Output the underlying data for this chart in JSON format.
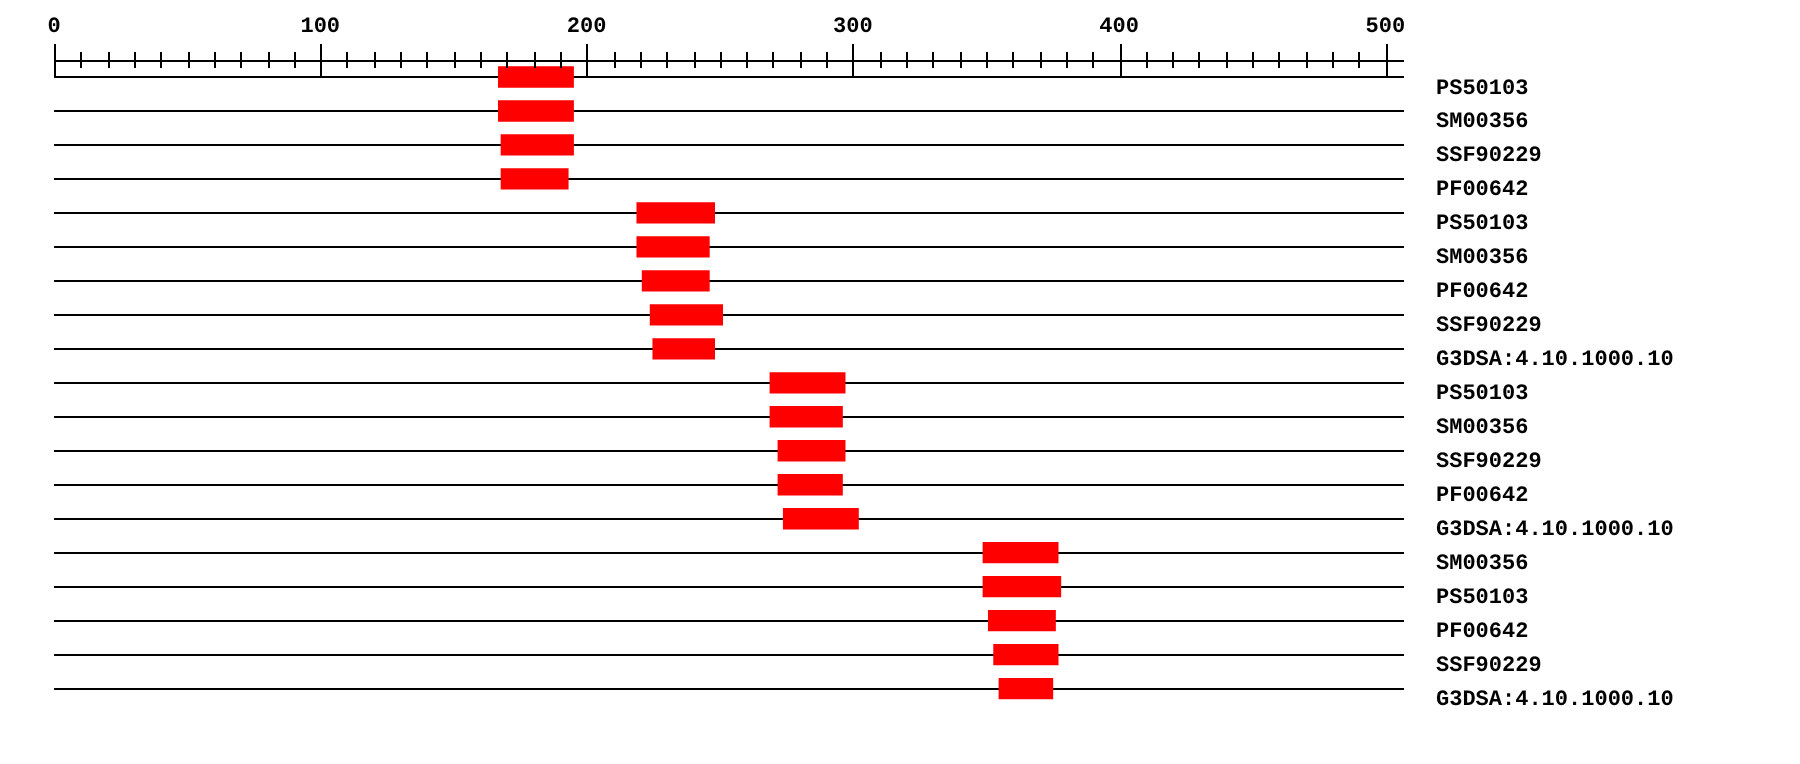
{
  "chart_data": {
    "type": "bar",
    "orientation": "horizontal",
    "categories": [
      "PS50103",
      "SM00356",
      "SSF90229",
      "PF00642",
      "PS50103",
      "SM00356",
      "PF00642",
      "SSF90229",
      "G3DSA:4.10.1000.10",
      "PS50103",
      "SM00356",
      "SSF90229",
      "PF00642",
      "G3DSA:4.10.1000.10",
      "SM00356",
      "PS50103",
      "PF00642",
      "SSF90229",
      "G3DSA:4.10.1000.10"
    ],
    "base": [
      167,
      167,
      168,
      168,
      219,
      219,
      221,
      224,
      225,
      269,
      269,
      272,
      272,
      274,
      349,
      349,
      351,
      353,
      355
    ],
    "values": [
      28,
      28,
      27,
      25,
      29,
      27,
      25,
      27,
      23,
      28,
      27,
      25,
      24,
      28,
      28,
      29,
      25,
      24,
      20
    ],
    "color": "#ff0000",
    "xlim": [
      0,
      507
    ],
    "xticks": [
      0,
      {
        "value": 10,
        "label": null
      },
      {
        "value": 20,
        "label": null
      },
      {
        "value": 30,
        "label": null
      },
      {
        "value": 40,
        "label": null
      },
      {
        "value": 50,
        "label": null
      },
      {
        "value": 60,
        "label": null
      },
      {
        "value": 70,
        "label": null
      },
      {
        "value": 80,
        "label": null
      },
      {
        "value": 90,
        "label": null
      },
      100,
      {
        "value": 110,
        "label": null
      },
      {
        "value": 120,
        "label": null
      },
      {
        "value": 130,
        "label": null
      },
      {
        "value": 140,
        "label": null
      },
      {
        "value": 150,
        "label": null
      },
      {
        "value": 160,
        "label": null
      },
      {
        "value": 170,
        "label": null
      },
      {
        "value": 180,
        "label": null
      },
      {
        "value": 190,
        "label": null
      },
      200,
      {
        "value": 210,
        "label": null
      },
      {
        "value": 220,
        "label": null
      },
      {
        "value": 230,
        "label": null
      },
      {
        "value": 240,
        "label": null
      },
      {
        "value": 250,
        "label": null
      },
      {
        "value": 260,
        "label": null
      },
      {
        "value": 270,
        "label": null
      },
      {
        "value": 280,
        "label": null
      },
      {
        "value": 290,
        "label": null
      },
      300,
      {
        "value": 310,
        "label": null
      },
      {
        "value": 320,
        "label": null
      },
      {
        "value": 330,
        "label": null
      },
      {
        "value": 340,
        "label": null
      },
      {
        "value": 350,
        "label": null
      },
      {
        "value": 360,
        "label": null
      },
      {
        "value": 370,
        "label": null
      },
      {
        "value": 380,
        "label": null
      },
      {
        "value": 390,
        "label": null
      },
      400,
      {
        "value": 410,
        "label": null
      },
      {
        "value": 420,
        "label": null
      },
      {
        "value": 430,
        "label": null
      },
      {
        "value": 440,
        "label": null
      },
      {
        "value": 450,
        "label": null
      },
      {
        "value": 460,
        "label": null
      },
      {
        "value": 470,
        "label": null
      },
      {
        "value": 480,
        "label": null
      },
      {
        "value": 490,
        "label": null
      },
      500
    ],
    "grid": "y",
    "legend": false
  }
}
